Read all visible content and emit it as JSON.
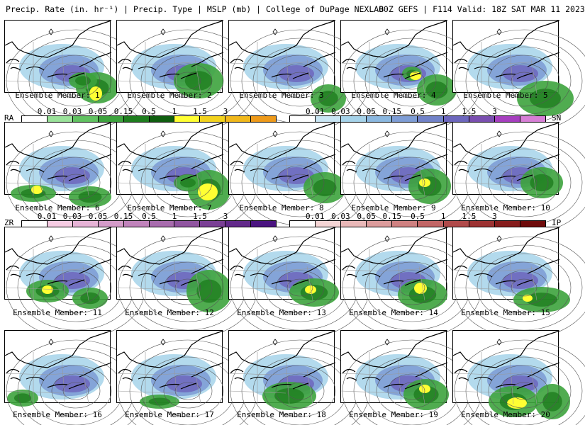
{
  "header": {
    "title_left": "Precip. Rate (in. hr⁻¹) | Precip. Type | MSLP (mb) | College of DuPage NEXLAB",
    "title_right": "00Z GEFS | F114 Valid: 18Z SAT MAR 11 2023"
  },
  "legend": {
    "bars": [
      {
        "type_label": "RA",
        "side": "left",
        "ticks": [
          "0.01",
          "0.03",
          "0.05",
          "0.15",
          "0.5",
          "1",
          "1.5",
          "3"
        ],
        "colors": [
          "#ffffff",
          "#9ae29a",
          "#61c261",
          "#3da33d",
          "#1e7d1e",
          "#0f5e0f",
          "#ffff33",
          "#f2d21e",
          "#f0b81c",
          "#ee9a1a"
        ]
      },
      {
        "type_label": "SN",
        "side": "right",
        "ticks": [
          "0.01",
          "0.03",
          "0.05",
          "0.15",
          "0.5",
          "1",
          "1.5",
          "3"
        ],
        "colors": [
          "#ffffff",
          "#c9e6f4",
          "#a6d3ea",
          "#8bb8e0",
          "#7e9dd5",
          "#7182c8",
          "#6d67bd",
          "#7a4fb0",
          "#a63fbf",
          "#d77fd6"
        ]
      },
      {
        "type_label": "ZR",
        "side": "left",
        "ticks": [
          "0.01",
          "0.03",
          "0.05",
          "0.15",
          "0.5",
          "1",
          "1.5",
          "3"
        ],
        "colors": [
          "#ffffff",
          "#f6cce3",
          "#e6b3d6",
          "#d49bc9",
          "#c083bb",
          "#a86cae",
          "#9055a0",
          "#7a3f95",
          "#62298a",
          "#4a1380"
        ]
      },
      {
        "type_label": "IP",
        "side": "right",
        "ticks": [
          "0.01",
          "0.03",
          "0.05",
          "0.15",
          "0.5",
          "1",
          "1.5",
          "3"
        ],
        "colors": [
          "#ffffff",
          "#f5d5d5",
          "#e9b8b8",
          "#dc9c9c",
          "#cf8181",
          "#c26666",
          "#b04a4a",
          "#9c3232",
          "#861c1c",
          "#6e0a0a"
        ]
      }
    ]
  },
  "members": [
    {
      "label": "Ensemble Member: 1",
      "rain": [
        [
          130,
          95,
          30,
          22
        ],
        [
          110,
          85,
          20,
          12
        ]
      ],
      "mix": [
        [
          128,
          103,
          9,
          10
        ]
      ]
    },
    {
      "label": "Ensemble Member: 2",
      "rain": [
        [
          115,
          85,
          35,
          25
        ]
      ],
      "mix": []
    },
    {
      "label": "Ensemble Member: 3",
      "rain": [
        [
          140,
          110,
          25,
          20
        ]
      ],
      "mix": []
    },
    {
      "label": "Ensemble Member: 4",
      "rain": [
        [
          135,
          98,
          28,
          22
        ],
        [
          100,
          75,
          14,
          10
        ]
      ],
      "mix": [
        [
          105,
          78,
          8,
          6
        ]
      ]
    },
    {
      "label": "Ensemble Member: 5",
      "rain": [
        [
          130,
          110,
          40,
          25
        ]
      ],
      "mix": []
    },
    {
      "label": "Ensemble Member: 6",
      "rain": [
        [
          40,
          100,
          32,
          12
        ],
        [
          120,
          105,
          30,
          15
        ]
      ],
      "mix": [
        [
          45,
          95,
          8,
          6
        ]
      ]
    },
    {
      "label": "Ensemble Member: 7",
      "rain": [
        [
          130,
          95,
          30,
          28
        ],
        [
          100,
          85,
          20,
          12
        ]
      ],
      "mix": [
        [
          128,
          98,
          14,
          12
        ]
      ]
    },
    {
      "label": "Ensemble Member: 8",
      "rain": [
        [
          135,
          92,
          30,
          22
        ]
      ],
      "mix": []
    },
    {
      "label": "Ensemble Member: 9",
      "rain": [
        [
          125,
          90,
          30,
          25
        ]
      ],
      "mix": [
        [
          118,
          85,
          8,
          6
        ]
      ]
    },
    {
      "label": "Ensemble Member: 10",
      "rain": [
        [
          125,
          85,
          30,
          22
        ]
      ],
      "mix": []
    },
    {
      "label": "Ensemble Member: 11",
      "rain": [
        [
          60,
          90,
          30,
          16
        ],
        [
          120,
          100,
          25,
          15
        ]
      ],
      "mix": [
        [
          60,
          88,
          8,
          6
        ]
      ]
    },
    {
      "label": "Ensemble Member: 12",
      "rain": [
        [
          130,
          90,
          32,
          30
        ]
      ],
      "mix": []
    },
    {
      "label": "Ensemble Member: 13",
      "rain": [
        [
          120,
          92,
          35,
          20
        ]
      ],
      "mix": [
        [
          115,
          88,
          8,
          6
        ]
      ]
    },
    {
      "label": "Ensemble Member: 14",
      "rain": [
        [
          115,
          95,
          35,
          22
        ]
      ],
      "mix": [
        [
          112,
          86,
          9,
          8
        ]
      ]
    },
    {
      "label": "Ensemble Member: 15",
      "rain": [
        [
          125,
          102,
          40,
          18
        ]
      ],
      "mix": [
        [
          105,
          100,
          7,
          5
        ]
      ]
    },
    {
      "label": "Ensemble Member: 16",
      "rain": [
        [
          25,
          95,
          22,
          12
        ]
      ],
      "mix": []
    },
    {
      "label": "Ensemble Member: 17",
      "rain": [
        [
          60,
          100,
          28,
          10
        ]
      ],
      "mix": []
    },
    {
      "label": "Ensemble Member: 18",
      "rain": [
        [
          85,
          92,
          38,
          20
        ]
      ],
      "mix": []
    },
    {
      "label": "Ensemble Member: 19",
      "rain": [
        [
          120,
          90,
          32,
          22
        ]
      ],
      "mix": [
        [
          118,
          82,
          8,
          6
        ]
      ]
    },
    {
      "label": "Ensemble Member: 20",
      "rain": [
        [
          85,
          100,
          35,
          22
        ],
        [
          140,
          100,
          25,
          25
        ]
      ],
      "mix": [
        [
          90,
          102,
          14,
          8
        ]
      ]
    }
  ]
}
